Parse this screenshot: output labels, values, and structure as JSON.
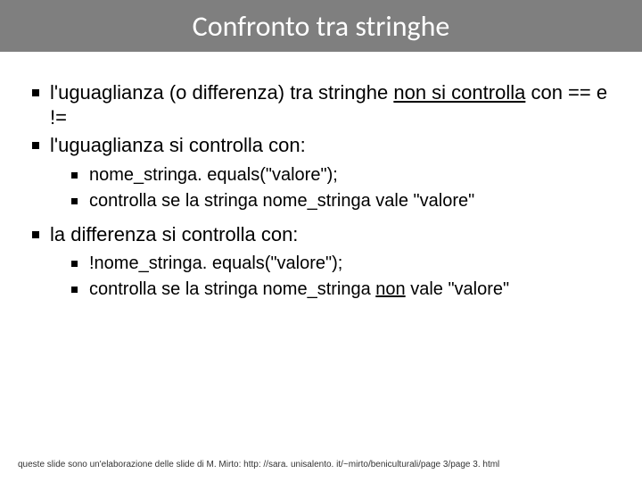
{
  "title": "Confronto tra stringhe",
  "bullets": {
    "b1_pre": "l'uguaglianza (o differenza) tra stringhe ",
    "b1_underline": "non si controlla",
    "b1_post": " con == e !=",
    "b2": "l'uguaglianza si controlla con:",
    "b2_sub1": "nome_stringa. equals(\"valore\");",
    "b2_sub2": "controlla se la stringa nome_stringa vale \"valore\"",
    "b3": "la differenza si controlla con:",
    "b3_sub1": "!nome_stringa. equals(\"valore\");",
    "b3_sub2_pre": "controlla se la stringa nome_stringa ",
    "b3_sub2_underline": "non",
    "b3_sub2_post": " vale \"valore\""
  },
  "footer": "queste slide sono un'elaborazione delle slide di M. Mirto: http: //sara. unisalento. it/~mirto/beniculturali/page 3/page 3. html",
  "colors": {
    "title_bar_bg": "#7f7f7f",
    "title_text": "#ffffff",
    "body_text": "#000000",
    "background": "#ffffff"
  }
}
